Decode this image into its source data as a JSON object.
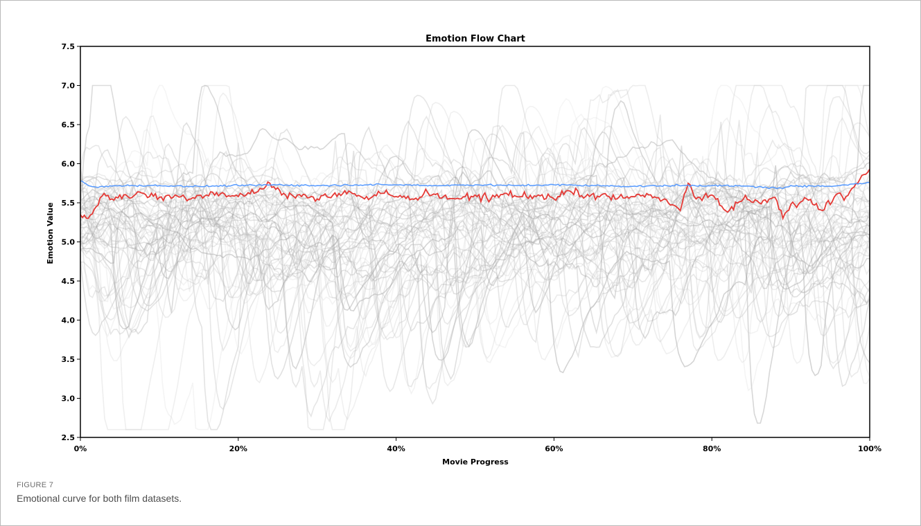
{
  "figure": {
    "label": "FIGURE 7",
    "caption": "Emotional curve for both film datasets."
  },
  "colors": {
    "background_lines": "#c8c8c8",
    "red_series": "#e53935",
    "blue_series": "#5599ff",
    "axis": "#000000"
  },
  "chart_data": {
    "type": "line",
    "title": "Emotion Flow Chart",
    "xlabel": "Movie Progress",
    "ylabel": "Emotion Value",
    "xlim": [
      0,
      100
    ],
    "ylim": [
      2.5,
      7.5
    ],
    "xticks": [
      0,
      20,
      40,
      60,
      80,
      100
    ],
    "xtick_labels": [
      "0%",
      "20%",
      "40%",
      "60%",
      "80%",
      "100%"
    ],
    "yticks": [
      2.5,
      3.0,
      3.5,
      4.0,
      4.5,
      5.0,
      5.5,
      6.0,
      6.5,
      7.0,
      7.5
    ],
    "ytick_labels": [
      "2.5",
      "3.0",
      "3.5",
      "4.0",
      "4.5",
      "5.0",
      "5.5",
      "6.0",
      "6.5",
      "7.0",
      "7.5"
    ],
    "grid": false,
    "legend": "none",
    "background_band": {
      "description_values": "many individual film curves drawn in translucent grey",
      "series_count": 60,
      "center": 5.4,
      "typical_low": 4.4,
      "typical_high": 6.3,
      "extreme_low": 2.6,
      "extreme_high": 7.0
    },
    "series": [
      {
        "color": "#e53935",
        "x": [
          0,
          1,
          2,
          3,
          4,
          5,
          6,
          8,
          10,
          12,
          14,
          16,
          18,
          20,
          22,
          24,
          26,
          28,
          30,
          32,
          34,
          36,
          38,
          40,
          42,
          44,
          46,
          48,
          50,
          52,
          54,
          56,
          58,
          60,
          62,
          64,
          66,
          68,
          70,
          72,
          74,
          76,
          77,
          78,
          80,
          82,
          84,
          86,
          88,
          89,
          90,
          92,
          94,
          96,
          97,
          98,
          99,
          100
        ],
        "y": [
          5.35,
          5.3,
          5.45,
          5.62,
          5.55,
          5.6,
          5.58,
          5.62,
          5.57,
          5.6,
          5.55,
          5.6,
          5.63,
          5.58,
          5.62,
          5.75,
          5.6,
          5.58,
          5.55,
          5.6,
          5.65,
          5.55,
          5.62,
          5.58,
          5.55,
          5.63,
          5.58,
          5.55,
          5.6,
          5.55,
          5.62,
          5.58,
          5.6,
          5.55,
          5.65,
          5.58,
          5.6,
          5.55,
          5.58,
          5.6,
          5.55,
          5.4,
          5.75,
          5.55,
          5.6,
          5.38,
          5.55,
          5.5,
          5.57,
          5.3,
          5.48,
          5.55,
          5.4,
          5.62,
          5.58,
          5.7,
          5.85,
          5.93
        ]
      },
      {
        "color": "#5599ff",
        "x": [
          0,
          1,
          2,
          5,
          10,
          15,
          20,
          25,
          30,
          35,
          40,
          45,
          50,
          55,
          60,
          65,
          70,
          75,
          80,
          85,
          89,
          90,
          95,
          98,
          100
        ],
        "y": [
          5.78,
          5.72,
          5.7,
          5.72,
          5.72,
          5.71,
          5.72,
          5.73,
          5.72,
          5.73,
          5.73,
          5.72,
          5.73,
          5.72,
          5.73,
          5.72,
          5.71,
          5.72,
          5.72,
          5.71,
          5.68,
          5.72,
          5.71,
          5.74,
          5.76
        ]
      }
    ]
  }
}
